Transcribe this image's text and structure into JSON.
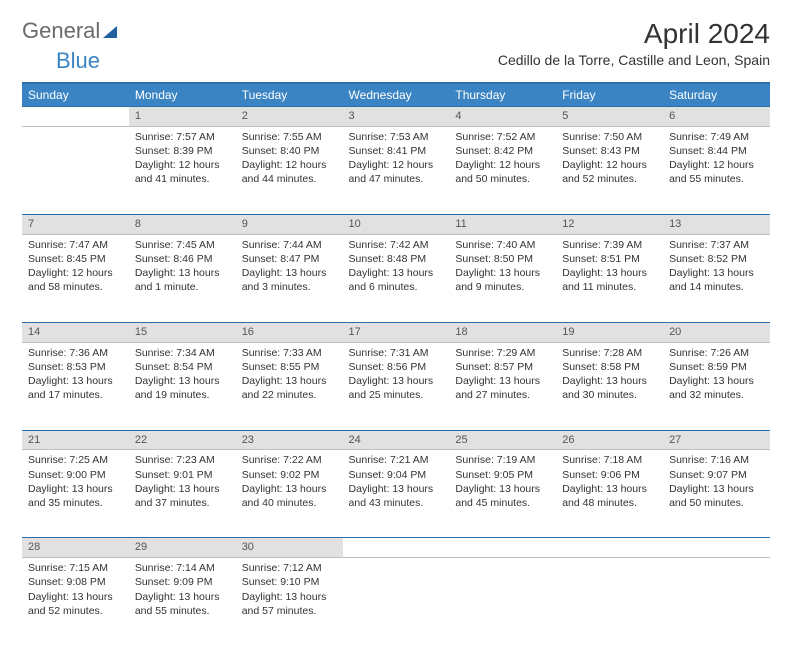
{
  "brand": {
    "part1": "General",
    "part2": "Blue"
  },
  "title": "April 2024",
  "location": "Cedillo de la Torre, Castille and Leon, Spain",
  "colors": {
    "header_bg": "#3a84c4",
    "header_border": "#2a6fab",
    "daynum_bg": "#e1e1e1",
    "text": "#333333",
    "muted": "#555555"
  },
  "weekdays": [
    "Sunday",
    "Monday",
    "Tuesday",
    "Wednesday",
    "Thursday",
    "Friday",
    "Saturday"
  ],
  "weeks": [
    {
      "nums": [
        "",
        "1",
        "2",
        "3",
        "4",
        "5",
        "6"
      ],
      "cells": [
        {
          "sr": "",
          "ss": "",
          "dl": ""
        },
        {
          "sr": "Sunrise: 7:57 AM",
          "ss": "Sunset: 8:39 PM",
          "dl": "Daylight: 12 hours and 41 minutes."
        },
        {
          "sr": "Sunrise: 7:55 AM",
          "ss": "Sunset: 8:40 PM",
          "dl": "Daylight: 12 hours and 44 minutes."
        },
        {
          "sr": "Sunrise: 7:53 AM",
          "ss": "Sunset: 8:41 PM",
          "dl": "Daylight: 12 hours and 47 minutes."
        },
        {
          "sr": "Sunrise: 7:52 AM",
          "ss": "Sunset: 8:42 PM",
          "dl": "Daylight: 12 hours and 50 minutes."
        },
        {
          "sr": "Sunrise: 7:50 AM",
          "ss": "Sunset: 8:43 PM",
          "dl": "Daylight: 12 hours and 52 minutes."
        },
        {
          "sr": "Sunrise: 7:49 AM",
          "ss": "Sunset: 8:44 PM",
          "dl": "Daylight: 12 hours and 55 minutes."
        }
      ]
    },
    {
      "nums": [
        "7",
        "8",
        "9",
        "10",
        "11",
        "12",
        "13"
      ],
      "cells": [
        {
          "sr": "Sunrise: 7:47 AM",
          "ss": "Sunset: 8:45 PM",
          "dl": "Daylight: 12 hours and 58 minutes."
        },
        {
          "sr": "Sunrise: 7:45 AM",
          "ss": "Sunset: 8:46 PM",
          "dl": "Daylight: 13 hours and 1 minute."
        },
        {
          "sr": "Sunrise: 7:44 AM",
          "ss": "Sunset: 8:47 PM",
          "dl": "Daylight: 13 hours and 3 minutes."
        },
        {
          "sr": "Sunrise: 7:42 AM",
          "ss": "Sunset: 8:48 PM",
          "dl": "Daylight: 13 hours and 6 minutes."
        },
        {
          "sr": "Sunrise: 7:40 AM",
          "ss": "Sunset: 8:50 PM",
          "dl": "Daylight: 13 hours and 9 minutes."
        },
        {
          "sr": "Sunrise: 7:39 AM",
          "ss": "Sunset: 8:51 PM",
          "dl": "Daylight: 13 hours and 11 minutes."
        },
        {
          "sr": "Sunrise: 7:37 AM",
          "ss": "Sunset: 8:52 PM",
          "dl": "Daylight: 13 hours and 14 minutes."
        }
      ]
    },
    {
      "nums": [
        "14",
        "15",
        "16",
        "17",
        "18",
        "19",
        "20"
      ],
      "cells": [
        {
          "sr": "Sunrise: 7:36 AM",
          "ss": "Sunset: 8:53 PM",
          "dl": "Daylight: 13 hours and 17 minutes."
        },
        {
          "sr": "Sunrise: 7:34 AM",
          "ss": "Sunset: 8:54 PM",
          "dl": "Daylight: 13 hours and 19 minutes."
        },
        {
          "sr": "Sunrise: 7:33 AM",
          "ss": "Sunset: 8:55 PM",
          "dl": "Daylight: 13 hours and 22 minutes."
        },
        {
          "sr": "Sunrise: 7:31 AM",
          "ss": "Sunset: 8:56 PM",
          "dl": "Daylight: 13 hours and 25 minutes."
        },
        {
          "sr": "Sunrise: 7:29 AM",
          "ss": "Sunset: 8:57 PM",
          "dl": "Daylight: 13 hours and 27 minutes."
        },
        {
          "sr": "Sunrise: 7:28 AM",
          "ss": "Sunset: 8:58 PM",
          "dl": "Daylight: 13 hours and 30 minutes."
        },
        {
          "sr": "Sunrise: 7:26 AM",
          "ss": "Sunset: 8:59 PM",
          "dl": "Daylight: 13 hours and 32 minutes."
        }
      ]
    },
    {
      "nums": [
        "21",
        "22",
        "23",
        "24",
        "25",
        "26",
        "27"
      ],
      "cells": [
        {
          "sr": "Sunrise: 7:25 AM",
          "ss": "Sunset: 9:00 PM",
          "dl": "Daylight: 13 hours and 35 minutes."
        },
        {
          "sr": "Sunrise: 7:23 AM",
          "ss": "Sunset: 9:01 PM",
          "dl": "Daylight: 13 hours and 37 minutes."
        },
        {
          "sr": "Sunrise: 7:22 AM",
          "ss": "Sunset: 9:02 PM",
          "dl": "Daylight: 13 hours and 40 minutes."
        },
        {
          "sr": "Sunrise: 7:21 AM",
          "ss": "Sunset: 9:04 PM",
          "dl": "Daylight: 13 hours and 43 minutes."
        },
        {
          "sr": "Sunrise: 7:19 AM",
          "ss": "Sunset: 9:05 PM",
          "dl": "Daylight: 13 hours and 45 minutes."
        },
        {
          "sr": "Sunrise: 7:18 AM",
          "ss": "Sunset: 9:06 PM",
          "dl": "Daylight: 13 hours and 48 minutes."
        },
        {
          "sr": "Sunrise: 7:16 AM",
          "ss": "Sunset: 9:07 PM",
          "dl": "Daylight: 13 hours and 50 minutes."
        }
      ]
    },
    {
      "nums": [
        "28",
        "29",
        "30",
        "",
        "",
        "",
        ""
      ],
      "cells": [
        {
          "sr": "Sunrise: 7:15 AM",
          "ss": "Sunset: 9:08 PM",
          "dl": "Daylight: 13 hours and 52 minutes."
        },
        {
          "sr": "Sunrise: 7:14 AM",
          "ss": "Sunset: 9:09 PM",
          "dl": "Daylight: 13 hours and 55 minutes."
        },
        {
          "sr": "Sunrise: 7:12 AM",
          "ss": "Sunset: 9:10 PM",
          "dl": "Daylight: 13 hours and 57 minutes."
        },
        {
          "sr": "",
          "ss": "",
          "dl": ""
        },
        {
          "sr": "",
          "ss": "",
          "dl": ""
        },
        {
          "sr": "",
          "ss": "",
          "dl": ""
        },
        {
          "sr": "",
          "ss": "",
          "dl": ""
        }
      ]
    }
  ]
}
